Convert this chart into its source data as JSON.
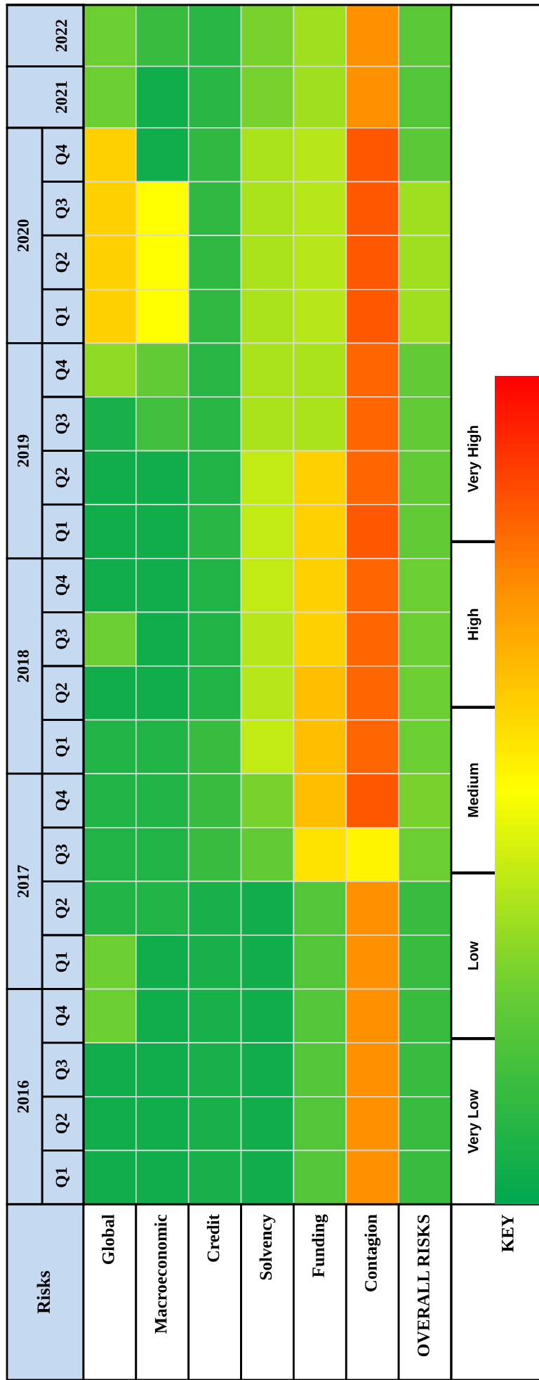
{
  "chart_data": {
    "type": "heatmap",
    "clabel": "KEY",
    "annotations": [
      "Risks",
      "2020",
      "2019",
      "2018",
      "2017",
      "2016"
    ],
    "categories": [
      "Global",
      "Macroeconomic",
      "Credit",
      "Solvency",
      "Funding",
      "Contagion",
      "OVERALL RISKS"
    ],
    "y_categories": [
      "2022",
      "2021",
      "Q4",
      "Q3",
      "Q2",
      "Q1",
      "Q4",
      "Q3",
      "Q2",
      "Q1",
      "Q4",
      "Q3",
      "Q2",
      "Q1",
      "Q4",
      "Q3",
      "Q2",
      "Q1",
      "Q4",
      "Q3",
      "Q2",
      "Q1"
    ],
    "cells": [
      [
        1.3,
        0.7,
        0.5,
        1.4,
        1.7,
        3.7,
        1.1
      ],
      [
        1.3,
        0.2,
        0.5,
        1.4,
        1.7,
        3.7,
        1.0
      ],
      [
        3.0,
        0.2,
        0.6,
        1.8,
        1.9,
        4.2,
        1.1
      ],
      [
        3.0,
        2.5,
        0.6,
        1.8,
        1.9,
        4.2,
        1.7
      ],
      [
        3.0,
        2.5,
        0.6,
        1.8,
        1.9,
        4.2,
        1.7
      ],
      [
        3.0,
        2.5,
        0.6,
        1.8,
        1.9,
        4.2,
        1.7
      ],
      [
        1.6,
        1.2,
        0.5,
        1.8,
        1.8,
        4.1,
        1.2
      ],
      [
        0.3,
        0.8,
        0.5,
        1.8,
        1.8,
        4.1,
        1.2
      ],
      [
        0.2,
        0.2,
        0.4,
        2.0,
        3.0,
        4.1,
        1.2
      ],
      [
        0.2,
        0.2,
        0.5,
        2.0,
        3.0,
        4.2,
        1.2
      ],
      [
        0.2,
        0.2,
        0.4,
        2.0,
        3.0,
        4.1,
        1.3
      ],
      [
        1.3,
        0.2,
        0.4,
        1.9,
        3.0,
        4.1,
        1.3
      ],
      [
        0.2,
        0.2,
        0.4,
        1.9,
        3.2,
        4.1,
        1.3
      ],
      [
        0.4,
        0.4,
        0.7,
        2.0,
        3.2,
        4.1,
        1.3
      ],
      [
        0.4,
        0.4,
        0.7,
        1.4,
        3.2,
        4.2,
        1.4
      ],
      [
        0.4,
        0.4,
        0.7,
        1.2,
        2.8,
        2.6,
        1.3
      ],
      [
        0.4,
        0.4,
        0.3,
        0.2,
        1.0,
        3.7,
        0.7
      ],
      [
        1.3,
        0.2,
        0.3,
        0.2,
        1.0,
        3.7,
        0.7
      ],
      [
        1.3,
        0.2,
        0.3,
        0.2,
        1.0,
        3.7,
        0.7
      ],
      [
        0.2,
        0.2,
        0.3,
        0.2,
        1.0,
        3.7,
        0.7
      ],
      [
        0.2,
        0.2,
        0.3,
        0.2,
        1.0,
        3.7,
        0.7
      ],
      [
        0.2,
        0.2,
        0.3,
        0.2,
        1.0,
        3.7,
        0.7
      ]
    ],
    "clim": [
      0,
      5
    ],
    "cticks": [
      {
        "value": 0.5,
        "label": "Very Low"
      },
      {
        "value": 1,
        "label": null
      },
      {
        "value": 1.5,
        "label": "Low"
      },
      {
        "value": 2,
        "label": null
      },
      {
        "value": 2.5,
        "label": "Medium"
      },
      {
        "value": 3,
        "label": null
      },
      {
        "value": 3.5,
        "label": "High"
      },
      {
        "value": 4,
        "label": null
      },
      {
        "value": 4.5,
        "label": "Very High"
      }
    ]
  }
}
